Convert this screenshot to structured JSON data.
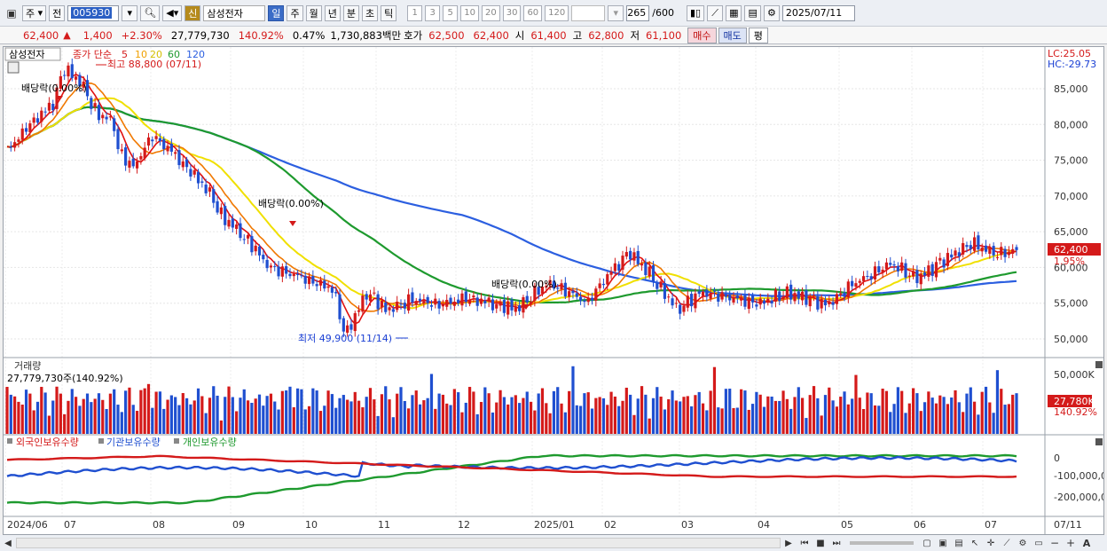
{
  "toolbar": {
    "market_selector": "주",
    "prev_label": "전",
    "stock_code": "005930",
    "stock_name": "삼성전자",
    "new_badge": "신",
    "periods": [
      "일",
      "주",
      "월",
      "년",
      "분",
      "초",
      "틱"
    ],
    "selected_period": "일",
    "intervals": [
      "1",
      "3",
      "5",
      "10",
      "20",
      "30",
      "60",
      "120"
    ],
    "count_value": "265",
    "count_total": "/600",
    "date_value": "2025/07/11"
  },
  "info": {
    "price": "62,400",
    "arrow": "▲",
    "change": "1,400",
    "change_pct": "+2.30%",
    "volume": "27,779,730",
    "volume_ratio": "140.92%",
    "turnover": "0.47%",
    "amount": "1,730,883백만",
    "hoga_label": "호가",
    "ask": "62,500",
    "bid": "62,400",
    "open_label": "시",
    "open": "61,400",
    "high_label": "고",
    "high": "62,800",
    "low_label": "저",
    "low": "61,100",
    "buy_label": "매수",
    "sell_label": "매도",
    "avg_label": "평"
  },
  "price_panel": {
    "name_label": "삼성전자",
    "ma_legend": {
      "title": "종가 단순",
      "p5": "5",
      "p10": "10",
      "p20": "20",
      "p60": "60",
      "p120": "120"
    },
    "high_annotation": "최고 88,800 (07/11)",
    "low_annotation": "최저 49,900 (11/14)",
    "dividend_label": "배당락(0.00%)",
    "lc_label": "LC:25.05",
    "hc_label": "HC:-29.73",
    "y_ticks": [
      "85,000",
      "80,000",
      "75,000",
      "70,000",
      "65,000",
      "60,000",
      "55,000",
      "50,000"
    ],
    "current_price_tag": "62,400",
    "current_pct_tag": "1.95%"
  },
  "volume_panel": {
    "title": "거래량",
    "current_label": "27,779,730주(140.92%)",
    "y_tick": "50,000K",
    "current_tag": "27,780K",
    "current_pct": "140.92%"
  },
  "holdings_panel": {
    "legend": [
      "외국인보유수량",
      "기관보유수량",
      "개인보유수량"
    ],
    "y_ticks": [
      "0",
      "-100,000,0",
      "-200,000,0"
    ]
  },
  "x_axis": {
    "labels": [
      "2024/06",
      "07",
      "08",
      "09",
      "10",
      "11",
      "12",
      "2025/01",
      "02",
      "03",
      "04",
      "05",
      "06",
      "07"
    ],
    "right_label": "07/11"
  },
  "colors": {
    "up": "#d41a1a",
    "down": "#1f4fd0",
    "ma5": "#e01010",
    "ma10": "#f07800",
    "ma20": "#f0e000",
    "ma60": "#1e9a2e",
    "ma120": "#2c5fe0"
  }
}
